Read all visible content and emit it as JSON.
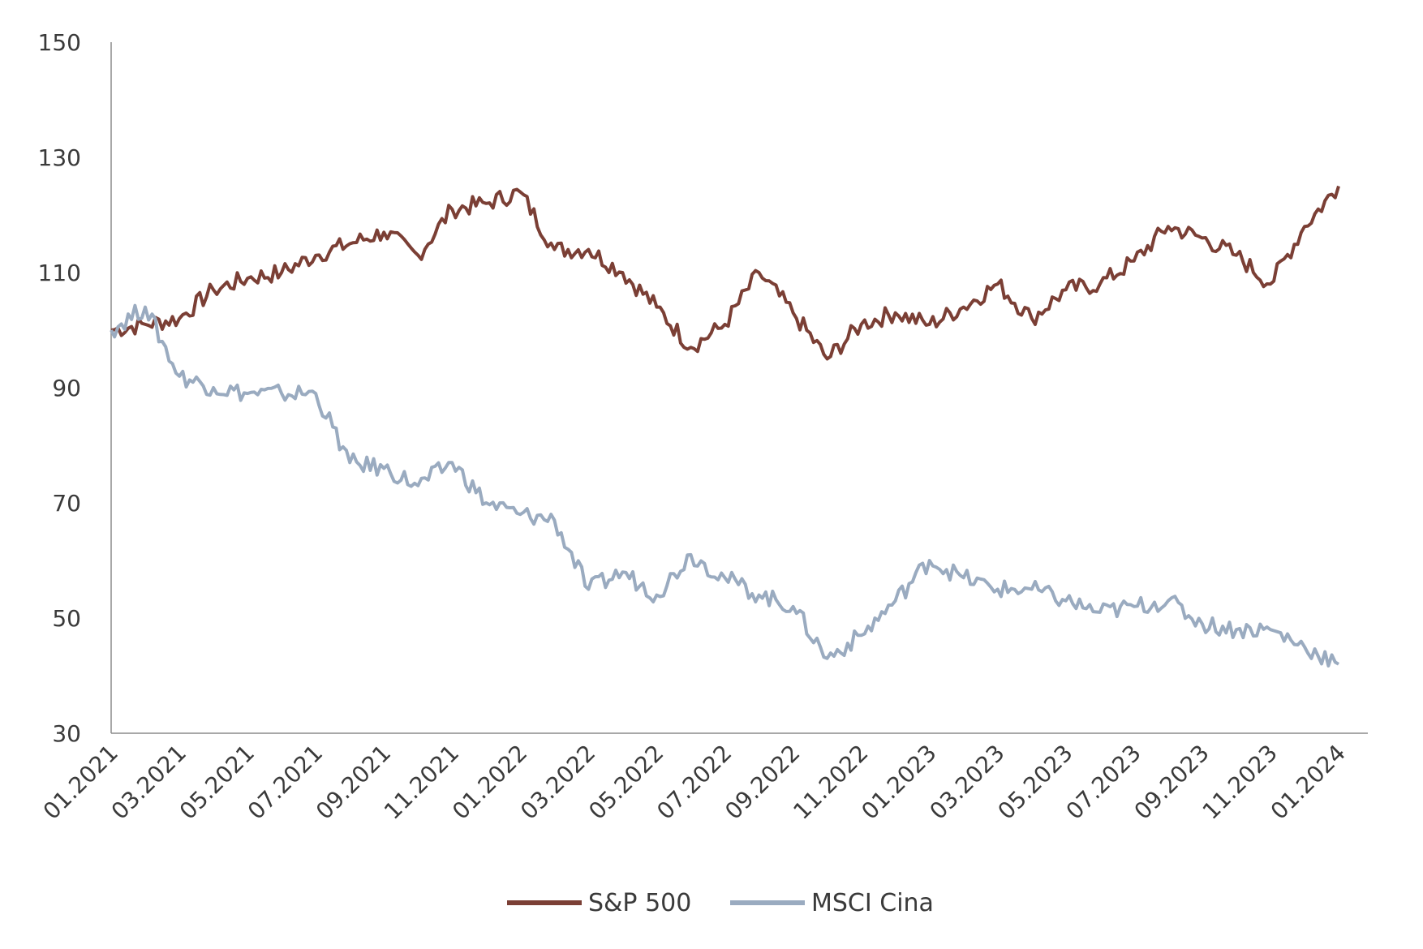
{
  "colors": {
    "sp500": "#7b3f35",
    "msci_cina": "#9aabc0",
    "axis": "#8c8c8c"
  },
  "chart_data": {
    "type": "line",
    "title": "",
    "xlabel": "",
    "ylabel": "",
    "ylim": [
      30,
      150
    ],
    "y_ticks": [
      "150",
      "130",
      "110",
      "90",
      "70",
      "50",
      "30"
    ],
    "x_ticks": [
      "01.2021",
      "03.2021",
      "05.2021",
      "07.2021",
      "09.2021",
      "11.2021",
      "01.2022",
      "03.2022",
      "05.2022",
      "07.2022",
      "09.2022",
      "11.2022",
      "01.2023",
      "03.2023",
      "05.2023",
      "07.2023",
      "09.2023",
      "11.2023",
      "01.2024"
    ],
    "grid": false,
    "legend_position": "bottom",
    "x": [
      "01.2021",
      "02.2021",
      "03.2021",
      "04.2021",
      "05.2021",
      "06.2021",
      "07.2021",
      "08.2021",
      "09.2021",
      "10.2021",
      "11.2021",
      "12.2021",
      "01.2022",
      "02.2022",
      "03.2022",
      "04.2022",
      "05.2022",
      "06.2022",
      "07.2022",
      "08.2022",
      "09.2022",
      "10.2022",
      "11.2022",
      "12.2022",
      "01.2023",
      "02.2023",
      "03.2023",
      "04.2023",
      "05.2023",
      "06.2023",
      "07.2023",
      "08.2023",
      "09.2023",
      "10.2023",
      "11.2023",
      "12.2023",
      "01.2024"
    ],
    "series": [
      {
        "name": "S&P 500",
        "color": "#7b3f35",
        "values": [
          100,
          101,
          102,
          107,
          109,
          110,
          113,
          115,
          117,
          113,
          121,
          122,
          124,
          114,
          114,
          110,
          104,
          97,
          101,
          110,
          103,
          95,
          101,
          103,
          101,
          104,
          108,
          102,
          107,
          108,
          112,
          118,
          116,
          113,
          108,
          118,
          125
        ]
      },
      {
        "name": "MSCI Cina",
        "color": "#9aabc0",
        "values": [
          100,
          104,
          92,
          90,
          89,
          89,
          89,
          77,
          76,
          73,
          77,
          70,
          68,
          67,
          55,
          58,
          54,
          61,
          57,
          54,
          52,
          43,
          47,
          53,
          60,
          57,
          55,
          55,
          53,
          51,
          52,
          53,
          49,
          48,
          48,
          45,
          42
        ]
      }
    ]
  }
}
